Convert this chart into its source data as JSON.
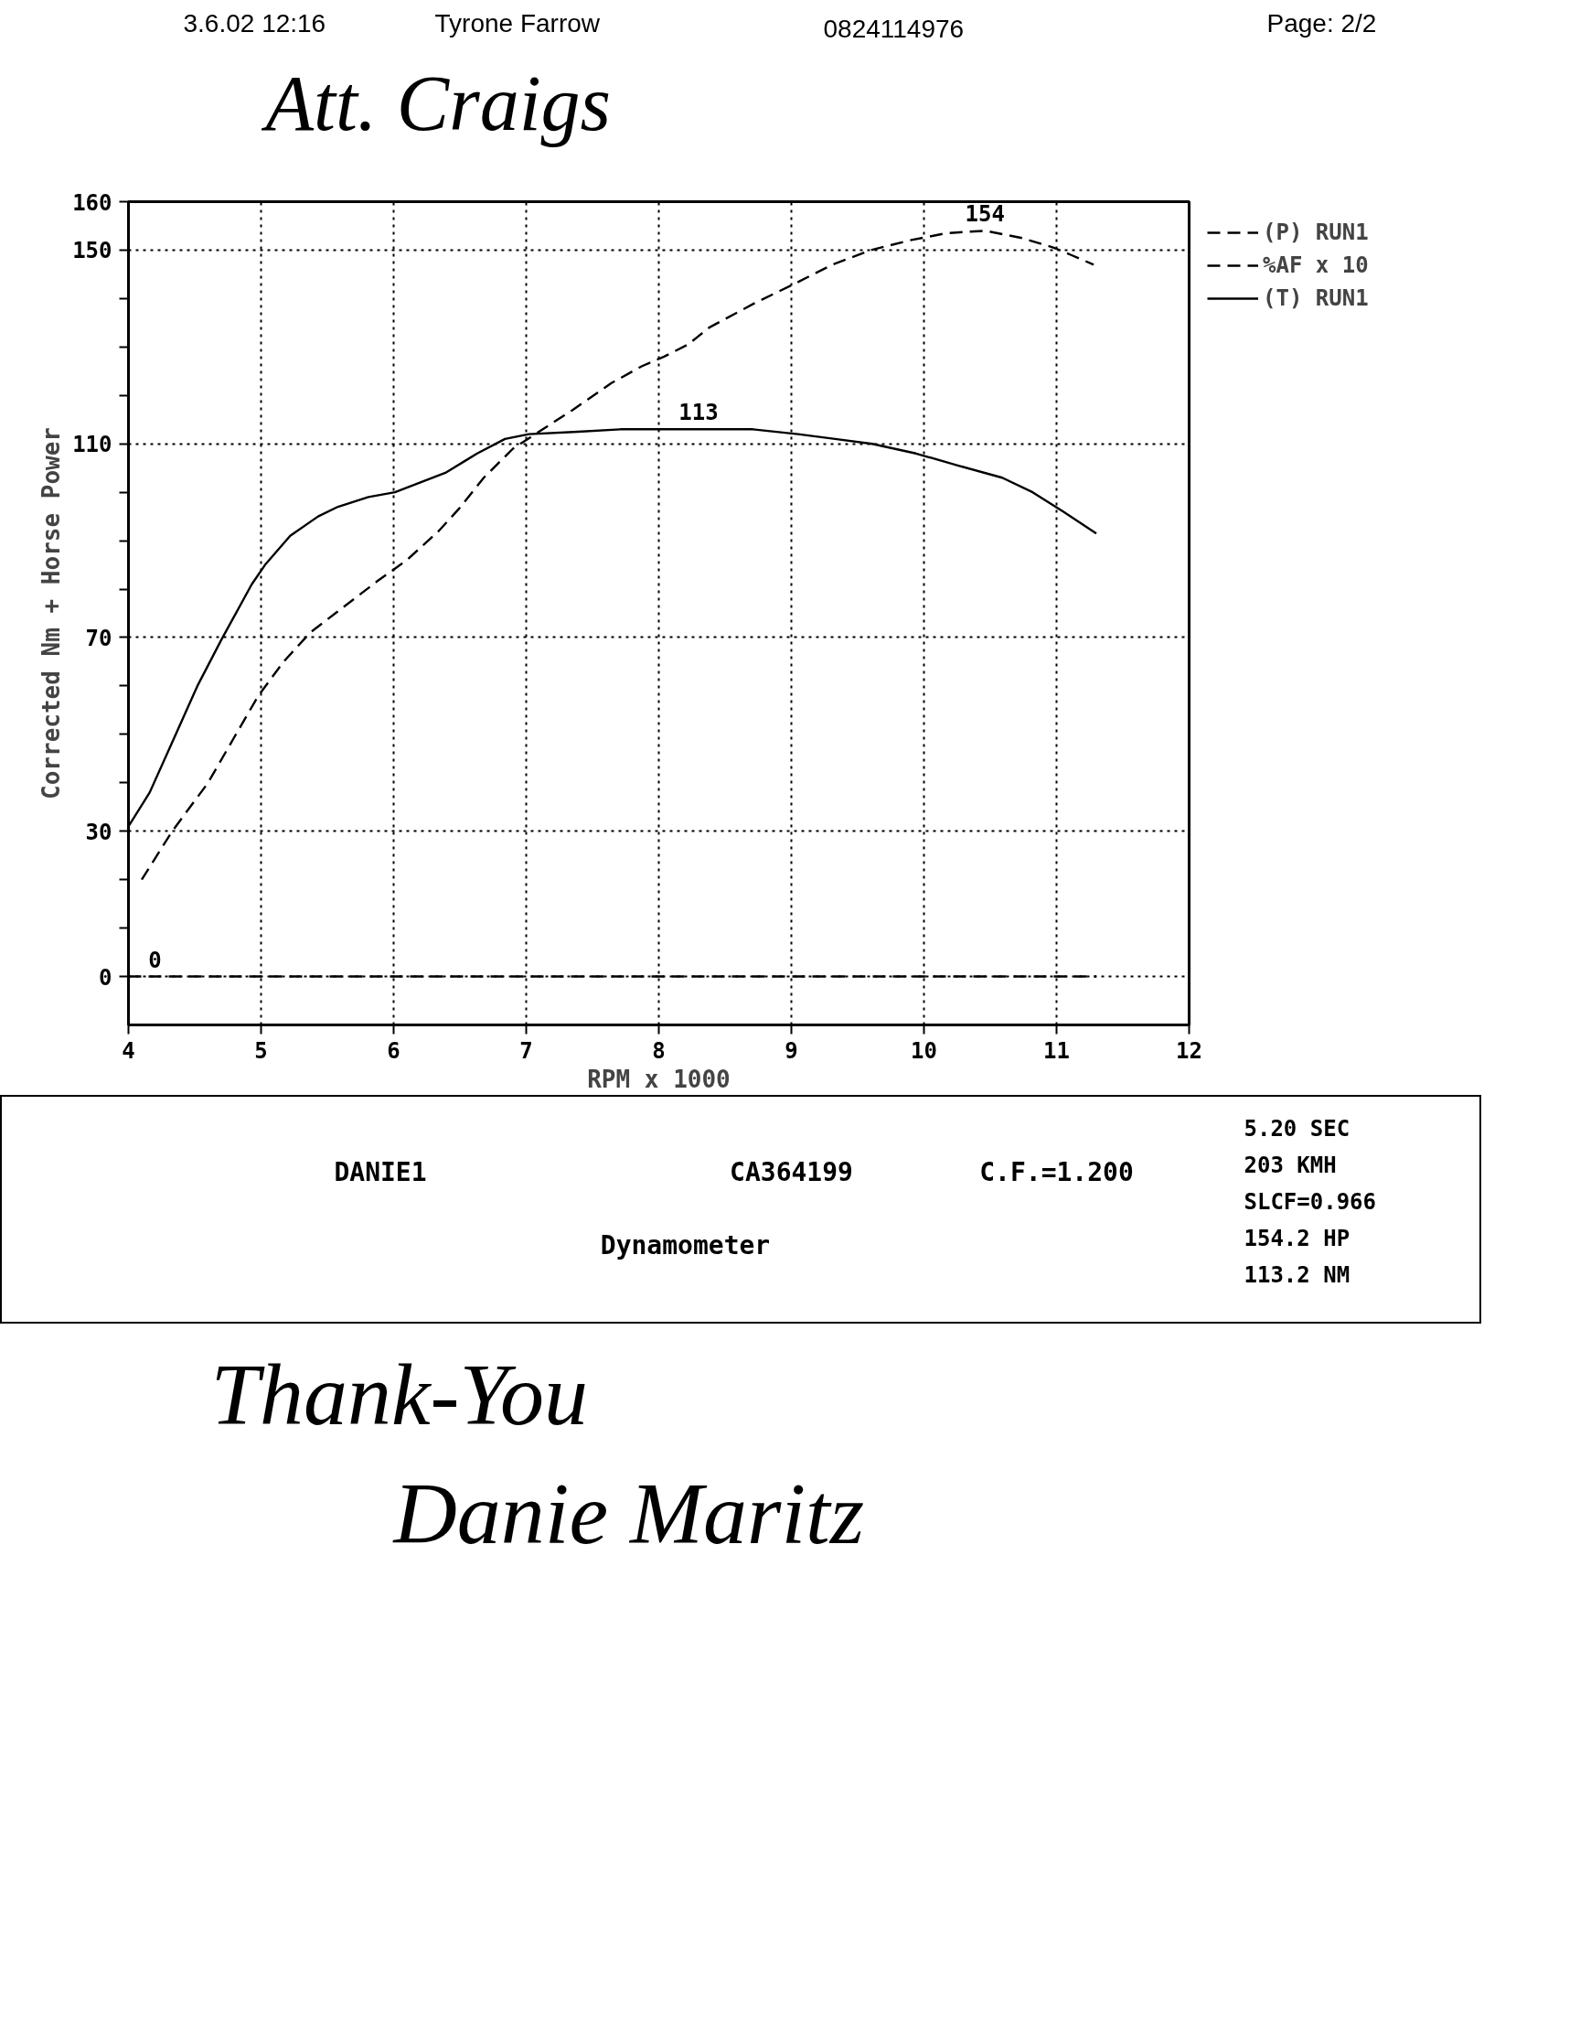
{
  "chart_data": {
    "type": "line",
    "xlabel": "RPM x 1000",
    "ylabel": "Corrected Nm + Horse Power",
    "xlim": [
      4,
      12
    ],
    "xticks": [
      4,
      5,
      6,
      7,
      8,
      9,
      10,
      11,
      12
    ],
    "ylim": [
      -10,
      160
    ],
    "yticks": [
      0,
      {
        "value": 10,
        "label": null
      },
      {
        "value": 20,
        "label": null
      },
      30,
      {
        "value": 40,
        "label": null
      },
      {
        "value": 50,
        "label": null
      },
      {
        "value": 60,
        "label": null
      },
      70,
      {
        "value": 80,
        "label": null
      },
      {
        "value": 90,
        "label": null
      },
      {
        "value": 100,
        "label": null
      },
      110,
      {
        "value": 120,
        "label": null
      },
      {
        "value": 130,
        "label": null
      },
      {
        "value": 140,
        "label": null
      },
      150,
      160
    ],
    "grid": true,
    "legend": "right",
    "series": [
      {
        "name": "(P) RUN1",
        "color": "#000000",
        "line_style": "dashed",
        "x": [
          4.1,
          4.33,
          4.6,
          4.8,
          4.98,
          5.17,
          5.37,
          5.56,
          5.87,
          6.1,
          6.34,
          6.49,
          6.68,
          6.9,
          7.04,
          7.35,
          7.64,
          7.87,
          8.04,
          8.22,
          8.38,
          8.72,
          9.02,
          9.31,
          9.6,
          9.89,
          10.17,
          10.46,
          10.74,
          10.98,
          11.11,
          11.28
        ],
        "values": [
          20,
          30,
          40,
          49.5,
          58,
          65,
          71,
          75,
          81.5,
          86,
          92,
          96.5,
          103,
          109,
          111.5,
          117,
          122.5,
          126,
          128,
          130.5,
          134,
          139,
          143,
          147,
          150,
          152,
          153.5,
          154,
          152.5,
          150.5,
          149,
          147
        ]
      },
      {
        "name": "%AF x 10",
        "color": "#000000",
        "line_style": "dashed",
        "x": [
          4.0,
          11.3
        ],
        "values": [
          0,
          0
        ]
      },
      {
        "name": "(T) RUN1",
        "color": "#000000",
        "line_style": "solid",
        "x": [
          4.0,
          4.16,
          4.34,
          4.52,
          4.7,
          4.93,
          5.03,
          5.22,
          5.43,
          5.58,
          5.81,
          6.01,
          6.39,
          6.63,
          6.84,
          7.02,
          7.39,
          7.71,
          8.05,
          8.29,
          8.71,
          9.05,
          9.33,
          9.61,
          9.94,
          10.26,
          10.59,
          10.82,
          11.05,
          11.3
        ],
        "values": [
          31,
          38,
          49,
          60,
          69.5,
          81,
          85,
          91,
          95,
          97,
          99,
          100,
          104,
          108,
          111,
          112,
          112.5,
          113,
          113,
          113,
          113,
          112,
          111,
          110,
          108,
          105.5,
          103,
          100,
          96,
          91.5
        ]
      }
    ],
    "annotations": [
      "3.6.02  12:16",
      "Tyrone Farrow",
      "0824114976",
      "Page: 2/2",
      "Att. Craigs",
      "5.20 SEC",
      "203 KMH",
      "SLCF=0.966",
      "154.2 HP",
      "113.2 NM",
      "DANIE1",
      "CA364199",
      "C.F.=1.200",
      "Dynamometer",
      "Thank-You",
      "Danie Maritz",
      {
        "text": "0",
        "x": 4.2,
        "y": 0
      },
      {
        "text": "113",
        "x": 8.3,
        "y": 113
      },
      {
        "text": "154",
        "x": 10.46,
        "y": 154
      }
    ]
  }
}
